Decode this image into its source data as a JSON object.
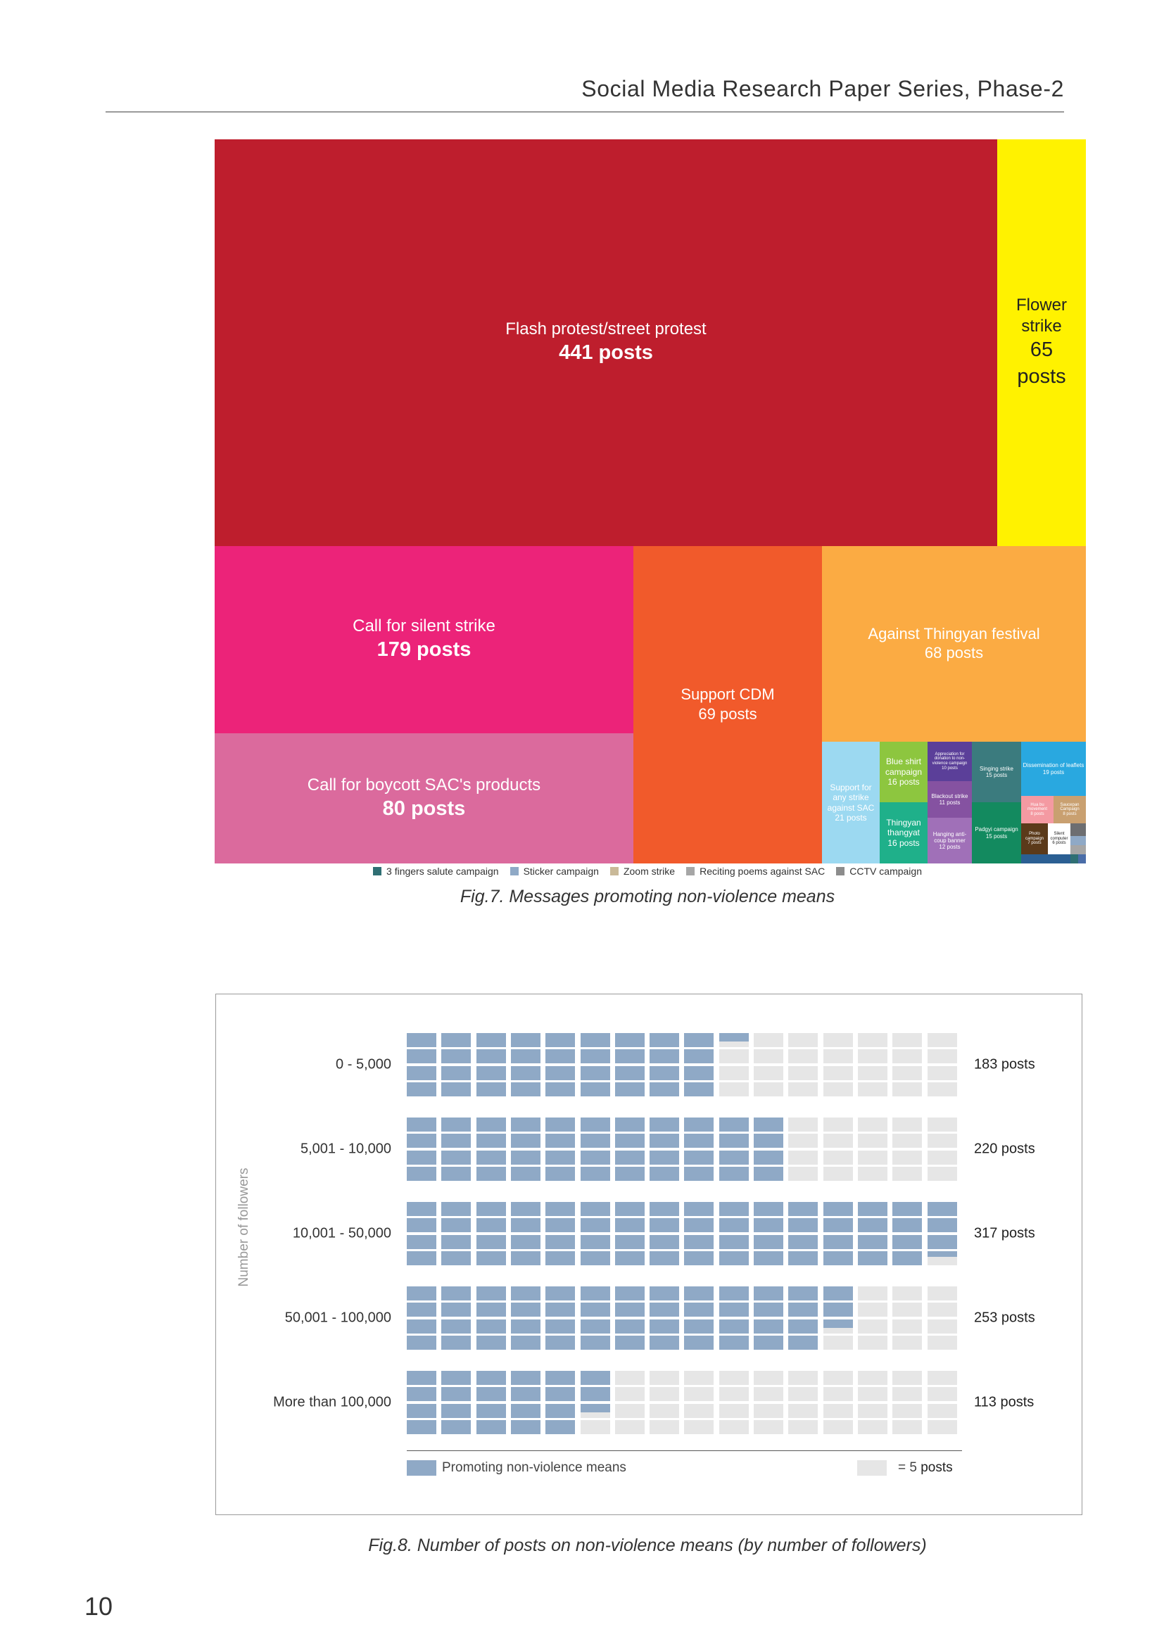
{
  "header": {
    "title": "Social Media Research Paper Series, Phase-2"
  },
  "figure7": {
    "caption": "Fig.7. Messages promoting non-violence means",
    "legend": [
      {
        "label": "3 fingers salute campaign",
        "color": "#2f6f73"
      },
      {
        "label": "Sticker campaign",
        "color": "#8fa9c6"
      },
      {
        "label": "Zoom strike",
        "color": "#c9b998"
      },
      {
        "label": "Reciting poems against SAC",
        "color": "#a6a6a6"
      },
      {
        "label": "CCTV campaign",
        "color": "#8c8c8c"
      }
    ]
  },
  "chart_data": [
    {
      "type": "treemap",
      "cells": [
        {
          "id": "flash",
          "label": "Flash protest/street protest",
          "value_text": "441 posts",
          "value": 441,
          "color": "#be1e2d"
        },
        {
          "id": "flower",
          "label": "Flower strike",
          "value_text": "65 posts",
          "value": 65,
          "color": "#fff200"
        },
        {
          "id": "silent",
          "label": "Call for silent strike",
          "value_text": "179 posts",
          "value": 179,
          "color": "#ec2379"
        },
        {
          "id": "boycott",
          "label": "Call for boycott SAC's products",
          "value_text": "80 posts",
          "value": 80,
          "color": "#db6a9d"
        },
        {
          "id": "cdm",
          "label": "Support CDM",
          "value_text": "69 posts",
          "value": 69,
          "color": "#f15a2b"
        },
        {
          "id": "thingyan",
          "label": "Against Thingyan festival",
          "value_text": "68 posts",
          "value": 68,
          "color": "#fbab43"
        },
        {
          "id": "support_strike",
          "label": "Support for any strike against SAC",
          "value_text": "21 posts",
          "value": 21,
          "color": "#9cd9f1"
        },
        {
          "id": "blue_shirt",
          "label": "Blue shirt campaign",
          "value_text": "16 posts",
          "value": 16,
          "color": "#8dc63f"
        },
        {
          "id": "thangyat",
          "label": "Thingyan thangyat",
          "value_text": "16 posts",
          "value": 16,
          "color": "#1fb08a"
        },
        {
          "id": "donation",
          "label": "Appreciation for donation to non-violence campaign",
          "value_text": "10 posts",
          "value": 10,
          "color": "#5b3f99"
        },
        {
          "id": "blackout",
          "label": "Blackout strike",
          "value_text": "11 posts",
          "value": 11,
          "color": "#8552a1"
        },
        {
          "id": "banner",
          "label": "Hanging anti-coup banner",
          "value_text": "12 posts",
          "value": 12,
          "color": "#a070b8"
        },
        {
          "id": "singing",
          "label": "Singing strike",
          "value_text": "15 posts",
          "value": 15,
          "color": "#3b7b7e"
        },
        {
          "id": "padgyi",
          "label": "Padgyi campaign",
          "value_text": "15 posts",
          "value": 15,
          "color": "#138a5f"
        },
        {
          "id": "leaflets",
          "label": "Dissemination of leaflets",
          "value_text": "19 posts",
          "value": 19,
          "color": "#29a8e0"
        },
        {
          "id": "hua",
          "label": "Hua bu movement",
          "value_text": "8 posts",
          "value": 8,
          "color": "#f49aa2"
        },
        {
          "id": "saucepan",
          "label": "Saucepan Campaign",
          "value_text": "8 posts",
          "value": 8,
          "color": "#c9a070"
        },
        {
          "id": "photo",
          "label": "Photo campaign",
          "value_text": "7 posts",
          "value": 7,
          "color": "#5b3a1a"
        },
        {
          "id": "silent_computer",
          "label": "Silent computer",
          "value_text": "6 posts",
          "value": 6,
          "color": "#ffffff"
        },
        {
          "id": "blue_posts",
          "label": "",
          "value_text": "",
          "color": "#2b5f93"
        },
        {
          "id": "x1",
          "label": "",
          "value_text": "",
          "color": "#6d6e71"
        },
        {
          "id": "x2",
          "label": "",
          "value_text": "",
          "color": "#8fa9c6"
        },
        {
          "id": "x3",
          "label": "",
          "value_text": "",
          "color": "#a6a6a6"
        },
        {
          "id": "x4",
          "label": "",
          "value_text": "",
          "color": "#2f6f73"
        },
        {
          "id": "x5",
          "label": "",
          "value_text": "",
          "color": "#4a6da8"
        }
      ]
    },
    {
      "type": "waffle",
      "title": "Fig.8. Number of posts on non-violence means (by number of followers)",
      "ylabel": "Number of followers",
      "unit_posts": 5,
      "columns": 16,
      "rows_per_column": 4,
      "series": [
        {
          "name": "0 - 5,000",
          "value": 183,
          "total_text": "183 posts"
        },
        {
          "name": "5,001 - 10,000",
          "value": 220,
          "total_text": "220 posts"
        },
        {
          "name": "10,001 - 50,000",
          "value": 317,
          "total_text": "317 posts"
        },
        {
          "name": "50,001 - 100,000",
          "value": 253,
          "total_text": "253 posts"
        },
        {
          "name": "More than 100,000",
          "value": 113,
          "total_text": "113 posts"
        }
      ],
      "legend": {
        "filled_label": "Promoting non-violence means",
        "filled_color": "#8fa9c6",
        "empty_color": "#e6e6e6",
        "unit_label": "= 5",
        "unit_suffix": "posts"
      }
    }
  ],
  "page_number": "10"
}
